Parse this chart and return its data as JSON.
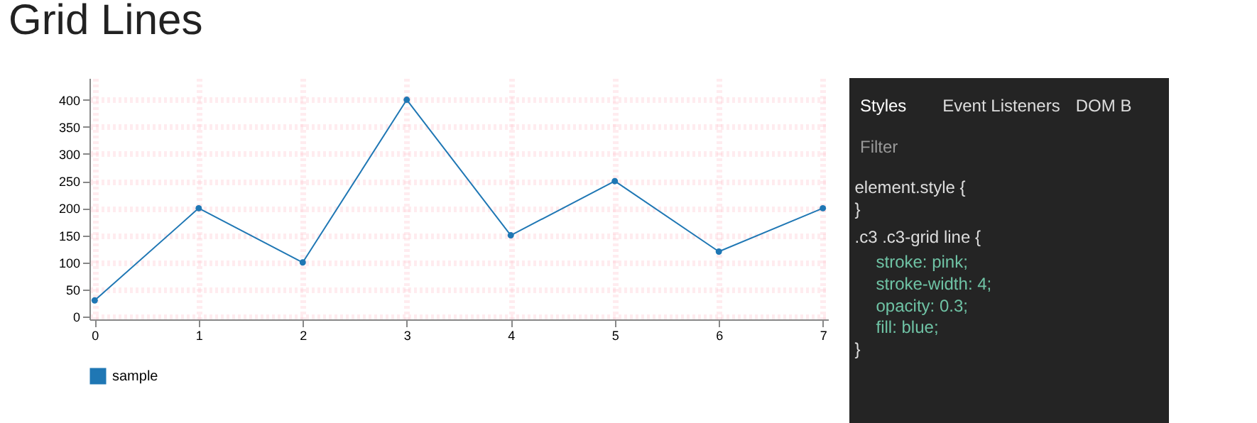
{
  "chart_data": [
    {
      "type": "line",
      "title": "Grid Lines",
      "x": [
        0,
        1,
        2,
        3,
        4,
        5,
        6,
        7
      ],
      "series": [
        {
          "name": "sample",
          "color": "#1f77b4",
          "values": [
            30,
            200,
            100,
            400,
            150,
            250,
            120,
            200
          ]
        }
      ],
      "xlim": [
        -0.05,
        7.05
      ],
      "xticks": [
        0,
        1,
        2,
        3,
        4,
        5,
        6,
        7
      ],
      "ylim": [
        -5,
        440
      ],
      "yticks": [
        0,
        50,
        100,
        150,
        200,
        250,
        300,
        350,
        400
      ],
      "grid": true,
      "legend": "bottom",
      "marker": "circle",
      "line_style": "solid"
    },
    {
      "type": "other",
      "annotations": [
        "Styles",
        "Event Listeners",
        "DOM B",
        "Filter",
        "element.style {",
        "}",
        ".c3 .c3-grid line {",
        "stroke: pink;",
        "stroke-width: 4;",
        "opacity: 0.3;",
        "fill: blue;",
        "}"
      ]
    }
  ]
}
